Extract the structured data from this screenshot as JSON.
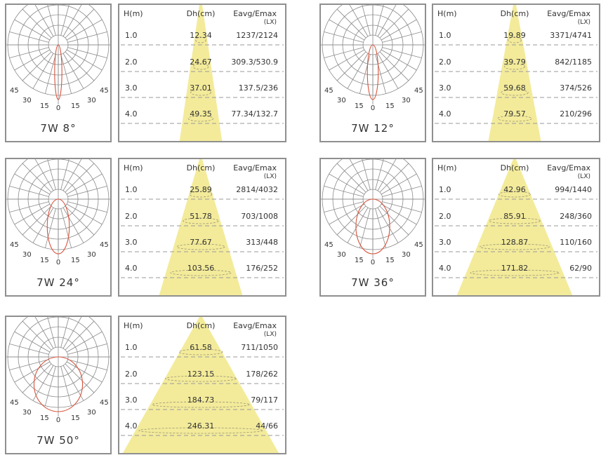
{
  "headers": {
    "h": "H(m)",
    "dh": "Dh(cm)",
    "e": "Eavg/Emax",
    "unit": "(LX)"
  },
  "angle_labels": {
    "left45": "45",
    "left30": "30",
    "left15": "15",
    "zero": "0",
    "right15": "15",
    "right30": "30",
    "right45": "45"
  },
  "panels": [
    {
      "caption": "7W 8°",
      "beam_deg": 8,
      "rows": [
        {
          "h": "1.0",
          "dh": "12.34",
          "e": "1237/2124"
        },
        {
          "h": "2.0",
          "dh": "24.67",
          "e": "309.3/530.9"
        },
        {
          "h": "3.0",
          "dh": "37.01",
          "e": "137.5/236"
        },
        {
          "h": "4.0",
          "dh": "49.35",
          "e": "77.34/132.7"
        }
      ]
    },
    {
      "caption": "7W 12°",
      "beam_deg": 12,
      "rows": [
        {
          "h": "1.0",
          "dh": "19.89",
          "e": "3371/4741"
        },
        {
          "h": "2.0",
          "dh": "39.79",
          "e": "842/1185"
        },
        {
          "h": "3.0",
          "dh": "59.68",
          "e": "374/526"
        },
        {
          "h": "4.0",
          "dh": "79.57",
          "e": "210/296"
        }
      ]
    },
    {
      "caption": "7W 24°",
      "beam_deg": 24,
      "rows": [
        {
          "h": "1.0",
          "dh": "25.89",
          "e": "2814/4032"
        },
        {
          "h": "2.0",
          "dh": "51.78",
          "e": "703/1008"
        },
        {
          "h": "3.0",
          "dh": "77.67",
          "e": "313/448"
        },
        {
          "h": "4.0",
          "dh": "103.56",
          "e": "176/252"
        }
      ]
    },
    {
      "caption": "7W 36°",
      "beam_deg": 36,
      "rows": [
        {
          "h": "1.0",
          "dh": "42.96",
          "e": "994/1440"
        },
        {
          "h": "2.0",
          "dh": "85.91",
          "e": "248/360"
        },
        {
          "h": "3.0",
          "dh": "128.87",
          "e": "110/160"
        },
        {
          "h": "4.0",
          "dh": "171.82",
          "e": "62/90"
        }
      ]
    },
    {
      "caption": "7W 50°",
      "beam_deg": 50,
      "rows": [
        {
          "h": "1.0",
          "dh": "61.58",
          "e": "711/1050"
        },
        {
          "h": "2.0",
          "dh": "123.15",
          "e": "178/262"
        },
        {
          "h": "3.0",
          "dh": "184.73",
          "e": "79/117"
        },
        {
          "h": "4.0",
          "dh": "246.31",
          "e": "44/66"
        }
      ]
    }
  ],
  "colors": {
    "beam": "#f3eb9a",
    "curve": "#d9533c",
    "grid": "#8a8a8a",
    "dash": "#999999"
  }
}
